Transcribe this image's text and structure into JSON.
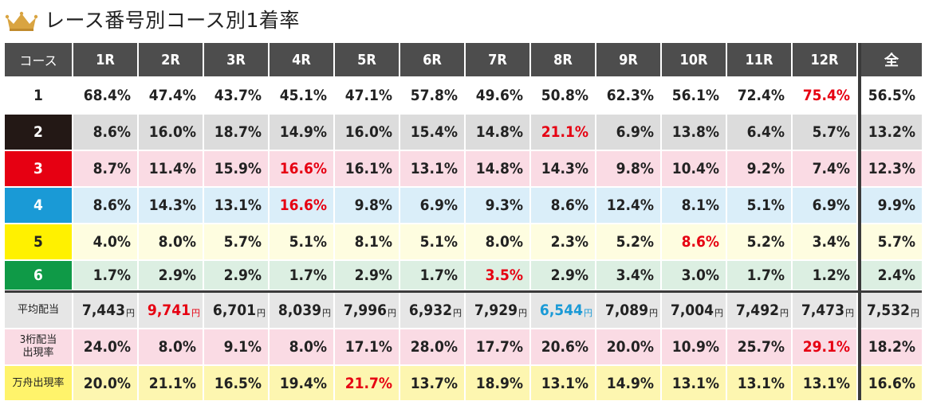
{
  "title": "レース番号別コース別1着率",
  "columns": [
    "コース",
    "1R",
    "2R",
    "3R",
    "4R",
    "5R",
    "6R",
    "7R",
    "8R",
    "9R",
    "10R",
    "11R",
    "12R",
    "全"
  ],
  "lanes": [
    {
      "label": "1",
      "bg": "#ffffff",
      "fg": "#222222",
      "row_bg": "#ffffff",
      "values": [
        "68.4%",
        "47.4%",
        "43.7%",
        "45.1%",
        "47.1%",
        "57.8%",
        "49.6%",
        "50.8%",
        "62.3%",
        "56.1%",
        "72.4%",
        "75.4%",
        "56.5%"
      ],
      "highlight": [
        11
      ]
    },
    {
      "label": "2",
      "bg": "#231815",
      "fg": "#ffffff",
      "row_bg": "#dcdcdc",
      "values": [
        "8.6%",
        "16.0%",
        "18.7%",
        "14.9%",
        "16.0%",
        "15.4%",
        "14.8%",
        "21.1%",
        "6.9%",
        "13.8%",
        "6.4%",
        "5.7%",
        "13.2%"
      ],
      "highlight": [
        7
      ]
    },
    {
      "label": "3",
      "bg": "#e60012",
      "fg": "#ffffff",
      "row_bg": "#fadbe4",
      "values": [
        "8.7%",
        "11.4%",
        "15.9%",
        "16.6%",
        "16.1%",
        "13.1%",
        "14.8%",
        "14.3%",
        "9.8%",
        "10.4%",
        "9.2%",
        "7.4%",
        "12.3%"
      ],
      "highlight": [
        3
      ]
    },
    {
      "label": "4",
      "bg": "#1a9ad6",
      "fg": "#ffffff",
      "row_bg": "#daeef9",
      "values": [
        "8.6%",
        "14.3%",
        "13.1%",
        "16.6%",
        "9.8%",
        "6.9%",
        "9.3%",
        "8.6%",
        "12.4%",
        "8.1%",
        "5.1%",
        "6.9%",
        "9.9%"
      ],
      "highlight": [
        3
      ]
    },
    {
      "label": "5",
      "bg": "#fff100",
      "fg": "#222222",
      "row_bg": "#fefde0",
      "values": [
        "4.0%",
        "8.0%",
        "5.7%",
        "5.1%",
        "8.1%",
        "5.1%",
        "8.0%",
        "2.3%",
        "5.2%",
        "8.6%",
        "5.2%",
        "3.4%",
        "5.7%"
      ],
      "highlight": [
        9
      ]
    },
    {
      "label": "6",
      "bg": "#0f9a47",
      "fg": "#ffffff",
      "row_bg": "#dcefe2",
      "values": [
        "1.7%",
        "2.9%",
        "2.9%",
        "1.7%",
        "2.9%",
        "1.7%",
        "3.5%",
        "2.9%",
        "3.4%",
        "3.0%",
        "1.7%",
        "1.2%",
        "2.4%"
      ],
      "highlight": [
        6
      ]
    }
  ],
  "metrics": [
    {
      "label_lines": [
        "平均配当"
      ],
      "label_bg": "#e6e6e6",
      "row_bg": "#e6e6e6",
      "unit": "円",
      "values": [
        "7,443",
        "9,741",
        "6,701",
        "8,039",
        "7,996",
        "6,932",
        "7,929",
        "6,544",
        "7,089",
        "7,004",
        "7,492",
        "7,473",
        "7,532"
      ],
      "highlight": [
        1
      ],
      "highlight_blue": [
        7
      ]
    },
    {
      "label_lines": [
        "3桁配当",
        "出現率"
      ],
      "label_bg": "#fadbe4",
      "row_bg": "#fadbe4",
      "unit": "",
      "values": [
        "24.0%",
        "8.0%",
        "9.1%",
        "8.0%",
        "17.1%",
        "28.0%",
        "17.7%",
        "20.6%",
        "20.0%",
        "10.9%",
        "25.7%",
        "29.1%",
        "18.2%"
      ],
      "highlight": [
        11
      ],
      "highlight_blue": []
    },
    {
      "label_lines": [
        "万舟出現率"
      ],
      "label_bg": "#fff36b",
      "row_bg": "#fdf6b0",
      "unit": "",
      "values": [
        "20.0%",
        "21.1%",
        "16.5%",
        "19.4%",
        "21.7%",
        "13.7%",
        "18.9%",
        "13.1%",
        "14.9%",
        "13.1%",
        "13.1%",
        "13.1%",
        "16.6%"
      ],
      "highlight": [
        4
      ],
      "highlight_blue": []
    }
  ]
}
